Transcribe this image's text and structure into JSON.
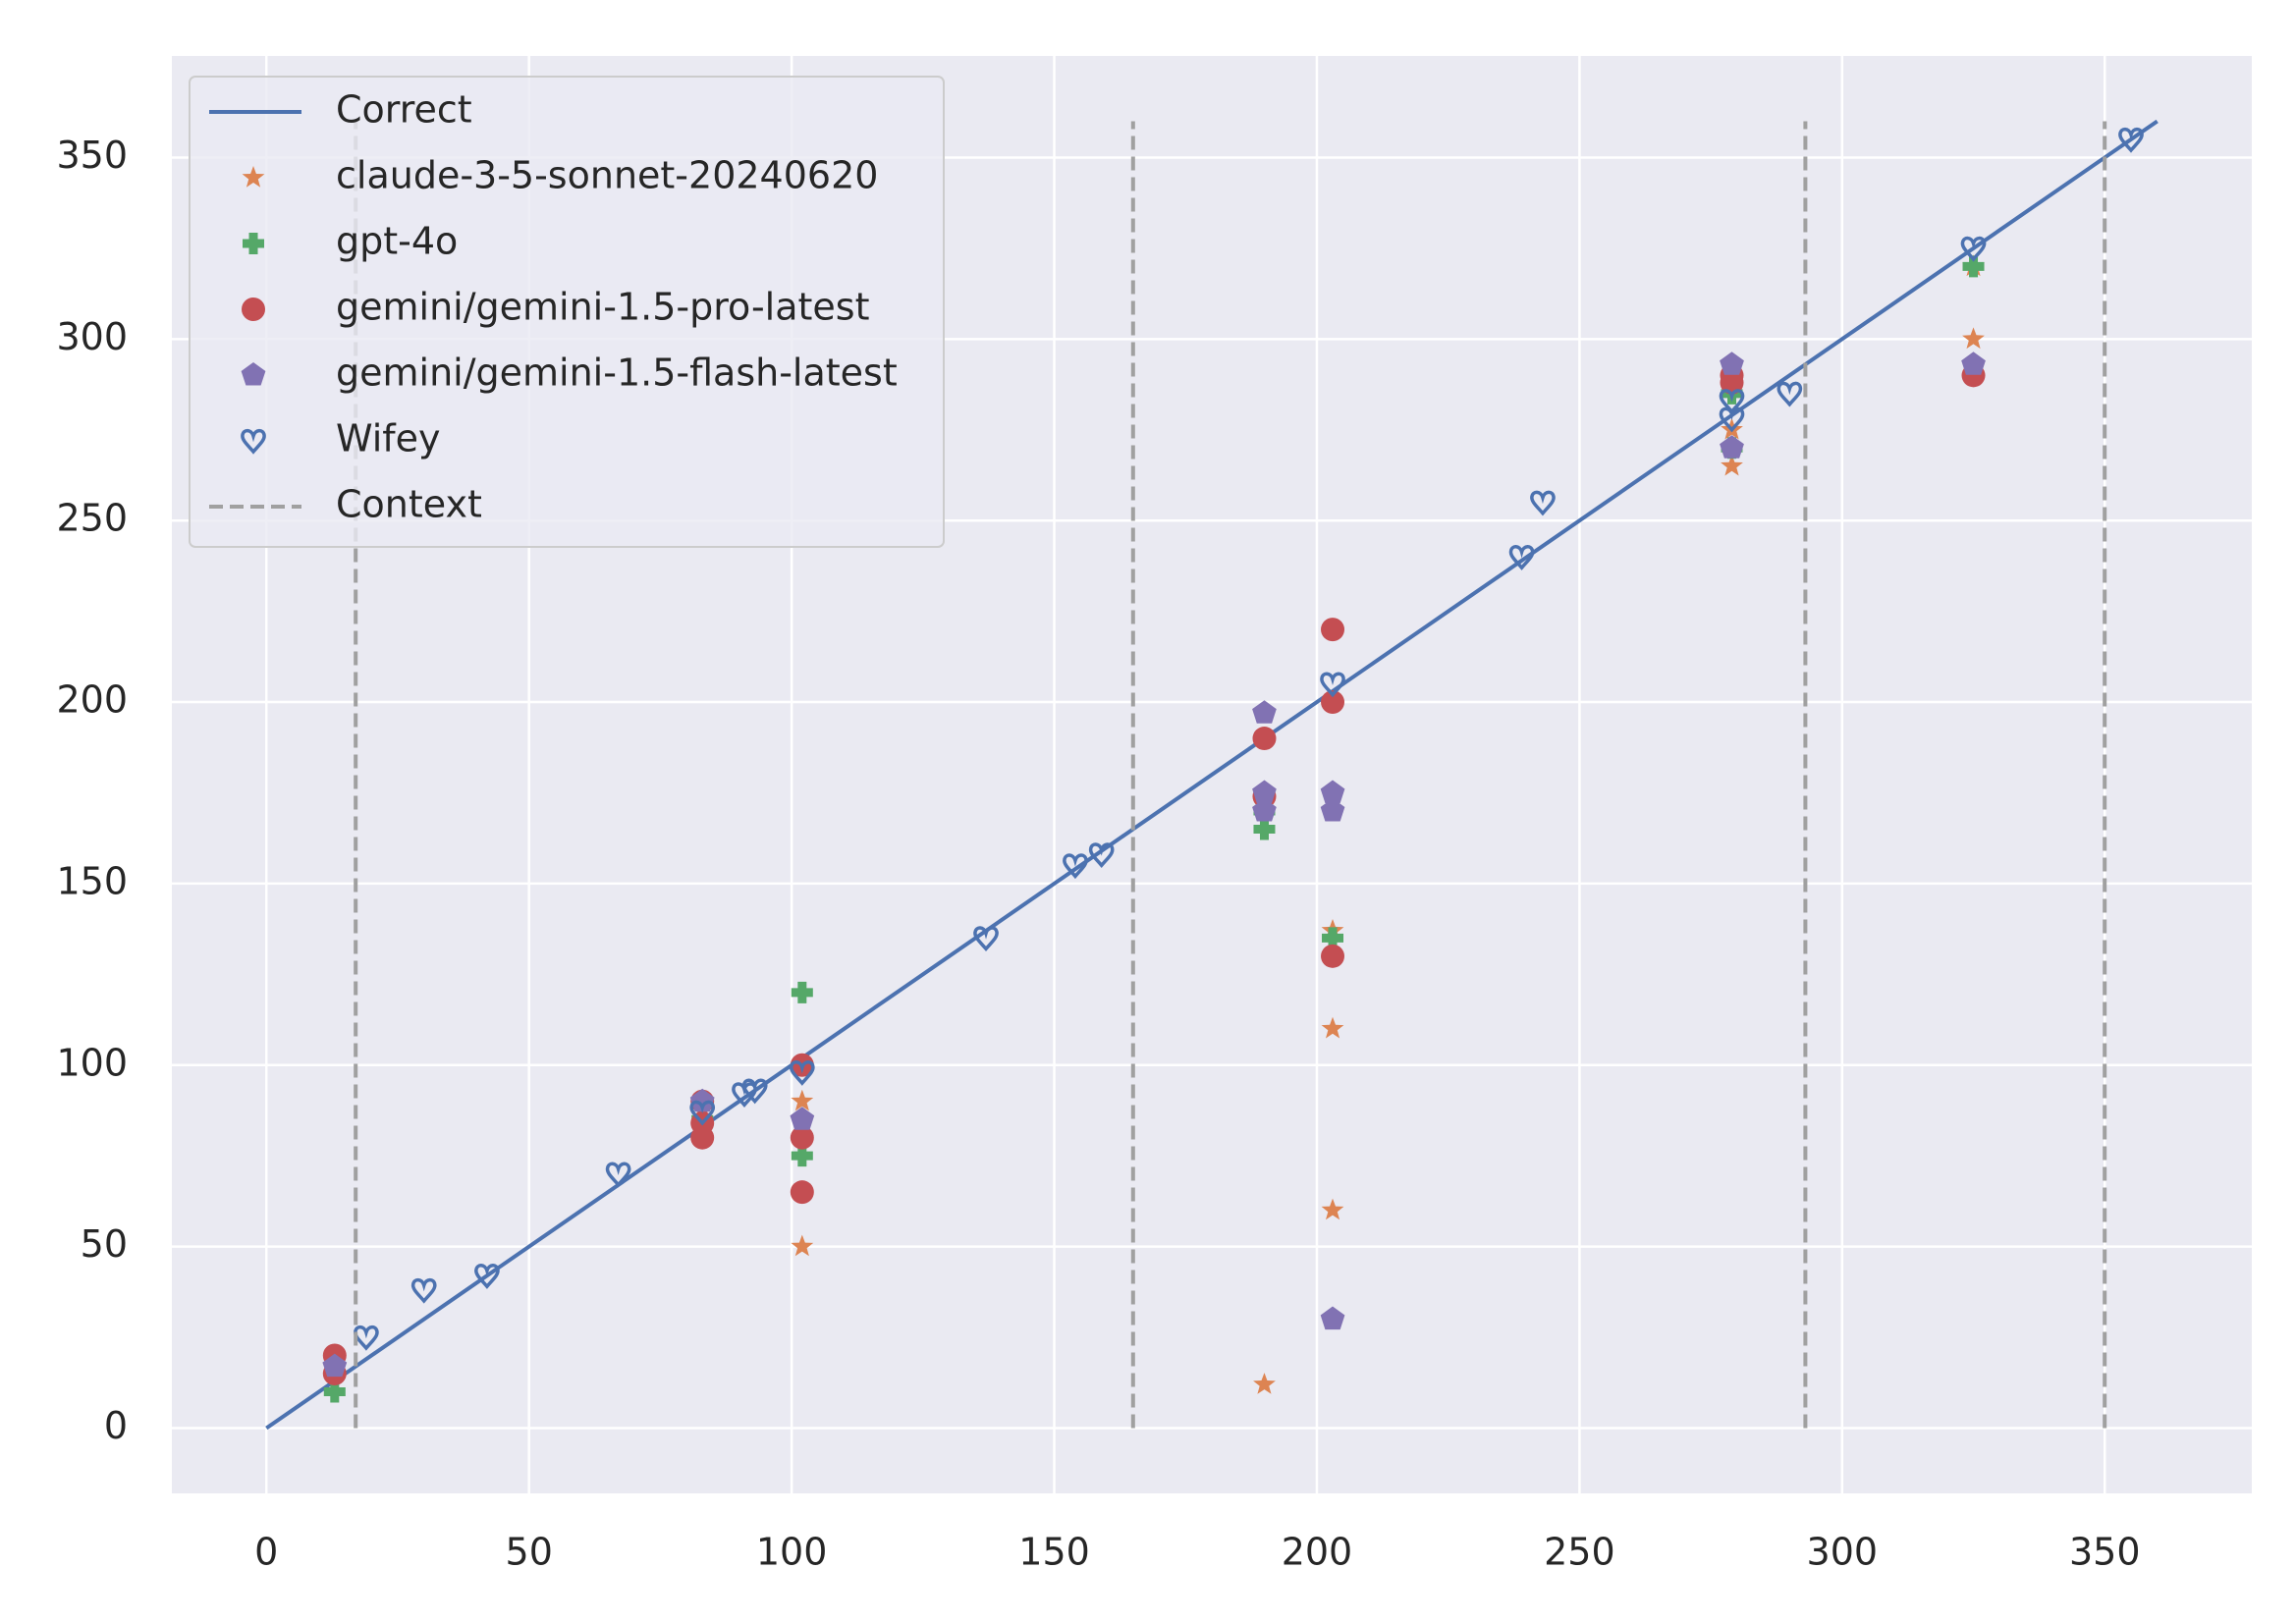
{
  "chart_data": {
    "type": "scatter",
    "xlim": [
      -18,
      378
    ],
    "ylim": [
      -18,
      378
    ],
    "xticks": [
      0,
      50,
      100,
      150,
      200,
      250,
      300,
      350
    ],
    "yticks": [
      0,
      50,
      100,
      150,
      200,
      250,
      300,
      350
    ],
    "grid": true,
    "legend": "upper left",
    "series": [
      {
        "name": "Correct",
        "type": "line",
        "color": "#4c72b0",
        "x": [
          0,
          360
        ],
        "values": [
          0,
          360
        ]
      },
      {
        "name": "claude-3-5-sonnet-20240620",
        "marker": "star",
        "color": "#dd8452",
        "x": [
          13,
          83,
          102,
          102,
          190,
          190,
          203,
          203,
          203,
          279,
          279,
          325,
          325
        ],
        "values": [
          15,
          85,
          90,
          50,
          12,
          170,
          137,
          110,
          60,
          275,
          265,
          300,
          320
        ]
      },
      {
        "name": "gpt-4o",
        "marker": "plus",
        "color": "#55a868",
        "x": [
          13,
          83,
          102,
          102,
          190,
          190,
          203,
          279,
          279,
          325
        ],
        "values": [
          10,
          85,
          120,
          75,
          165,
          170,
          135,
          285,
          270,
          320
        ]
      },
      {
        "name": "gemini/gemini-1.5-pro-latest",
        "marker": "circle",
        "color": "#c44e52",
        "x": [
          13,
          13,
          83,
          83,
          83,
          102,
          102,
          102,
          190,
          190,
          203,
          203,
          203,
          279,
          279,
          325
        ],
        "values": [
          20,
          15,
          90,
          80,
          84,
          100,
          80,
          65,
          190,
          174,
          220,
          200,
          130,
          290,
          288,
          290
        ]
      },
      {
        "name": "gemini/gemini-1.5-flash-latest",
        "marker": "pentagon",
        "color": "#8172b3",
        "x": [
          13,
          83,
          102,
          190,
          190,
          190,
          203,
          203,
          203,
          279,
          279,
          325
        ],
        "values": [
          17,
          90,
          85,
          197,
          175,
          170,
          175,
          170,
          30,
          293,
          270,
          293
        ]
      },
      {
        "name": "Wifey",
        "marker": "heart",
        "color": "#4c72b0",
        "x": [
          19,
          30,
          42,
          67,
          83,
          91,
          93,
          102,
          137,
          154,
          159,
          203,
          239,
          243,
          279,
          279,
          290,
          325,
          355
        ],
        "values": [
          25,
          38,
          42,
          70,
          87,
          92,
          93,
          98,
          135,
          155,
          158,
          205,
          240,
          255,
          283,
          278,
          285,
          325,
          355
        ]
      },
      {
        "name": "Context",
        "type": "line",
        "dash": true,
        "color": "#a0a0a0",
        "x": [
          17,
          17,
          null,
          165,
          165,
          null,
          293,
          293,
          null,
          350,
          350
        ],
        "values": [
          0,
          360,
          null,
          0,
          360,
          null,
          0,
          360,
          null,
          0,
          360
        ]
      }
    ]
  }
}
